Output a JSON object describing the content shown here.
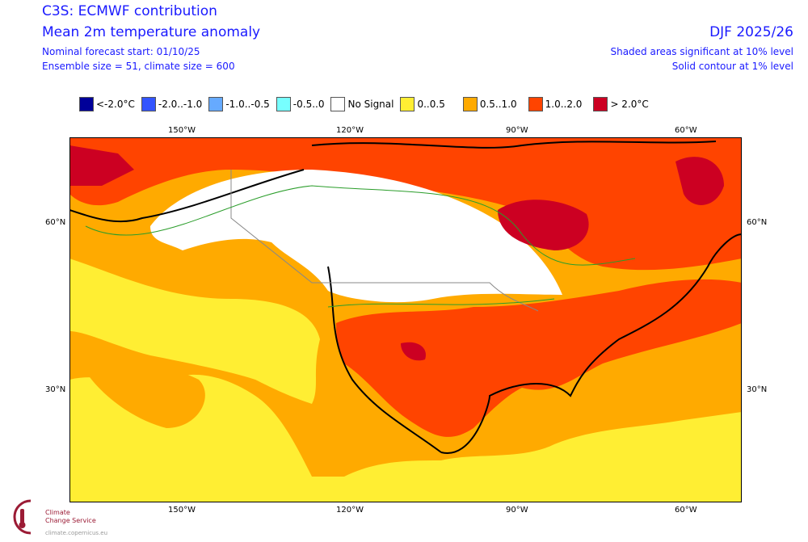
{
  "header": {
    "title": "C3S: ECMWF contribution",
    "subtitle": "Mean 2m temperature anomaly",
    "forecast_start": "Nominal forecast start: 01/10/25",
    "ensemble": "Ensemble size = 51, climate size = 600",
    "season": "DJF 2025/26",
    "note1": "Shaded areas significant at 10% level",
    "note2": "Solid contour at 1% level"
  },
  "legend": [
    {
      "label": "<-2.0°C",
      "color": "#000099"
    },
    {
      "label": "-2.0..-1.0",
      "color": "#3355ff"
    },
    {
      "label": "-1.0..-0.5",
      "color": "#66aaff"
    },
    {
      "label": "-0.5..0",
      "color": "#77ffff"
    },
    {
      "label": "No Signal",
      "color": "#ffffff"
    },
    {
      "label": "0..0.5",
      "color": "#ffee33"
    },
    {
      "label": "0.5..1.0",
      "color": "#ffaa00"
    },
    {
      "label": "1.0..2.0",
      "color": "#ff4400"
    },
    {
      "label": "> 2.0°C",
      "color": "#cc0022"
    }
  ],
  "axes": {
    "lon": [
      "150°W",
      "120°W",
      "90°W",
      "60°W"
    ],
    "lat": [
      "60°N",
      "30°N"
    ]
  },
  "logo": {
    "name1": "Climate",
    "name2": "Change Service",
    "url": "climate.copernicus.eu"
  }
}
